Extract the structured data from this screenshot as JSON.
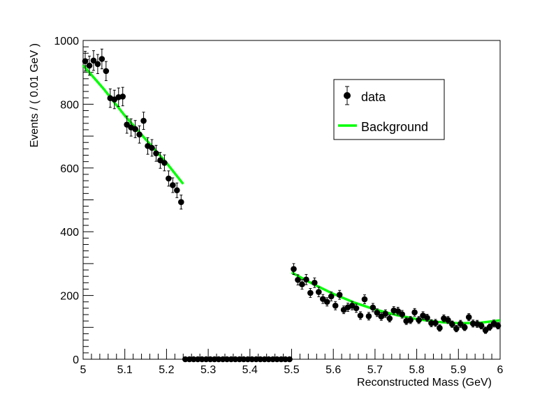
{
  "chart_data": {
    "type": "scatter",
    "xlabel": "Reconstructed Mass (GeV)",
    "ylabel": "Events / ( 0.01 GeV )",
    "xlim": [
      5.0,
      6.0
    ],
    "ylim": [
      0,
      1000
    ],
    "x_ticks": [
      "5",
      "5.1",
      "5.2",
      "5.3",
      "5.4",
      "5.5",
      "5.6",
      "5.7",
      "5.8",
      "5.9",
      "6"
    ],
    "y_ticks": [
      "0",
      "200",
      "400",
      "600",
      "800",
      "1000"
    ],
    "grid": false,
    "legend_position": "top-right",
    "legend": [
      {
        "label": "data",
        "marker": "point",
        "color": "#000000"
      },
      {
        "label": "Background",
        "marker": "line",
        "color": "#00ff00"
      }
    ],
    "series": [
      {
        "name": "data",
        "kind": "points-with-errors",
        "x": [
          5.005,
          5.015,
          5.025,
          5.035,
          5.045,
          5.055,
          5.065,
          5.075,
          5.085,
          5.095,
          5.105,
          5.115,
          5.125,
          5.135,
          5.145,
          5.155,
          5.165,
          5.175,
          5.185,
          5.195,
          5.205,
          5.215,
          5.225,
          5.235,
          5.245,
          5.255,
          5.265,
          5.275,
          5.285,
          5.295,
          5.305,
          5.315,
          5.325,
          5.335,
          5.345,
          5.355,
          5.365,
          5.375,
          5.385,
          5.395,
          5.405,
          5.415,
          5.425,
          5.435,
          5.445,
          5.455,
          5.465,
          5.475,
          5.485,
          5.495,
          5.505,
          5.515,
          5.525,
          5.535,
          5.545,
          5.555,
          5.565,
          5.575,
          5.585,
          5.595,
          5.605,
          5.615,
          5.625,
          5.635,
          5.645,
          5.655,
          5.665,
          5.675,
          5.685,
          5.695,
          5.705,
          5.715,
          5.725,
          5.735,
          5.745,
          5.755,
          5.765,
          5.775,
          5.785,
          5.795,
          5.805,
          5.815,
          5.825,
          5.835,
          5.845,
          5.855,
          5.865,
          5.875,
          5.885,
          5.895,
          5.905,
          5.915,
          5.925,
          5.935,
          5.945,
          5.955,
          5.965,
          5.975,
          5.985,
          5.995
        ],
        "y": [
          935,
          921,
          937,
          926,
          942,
          904,
          819,
          815,
          822,
          824,
          736,
          727,
          722,
          705,
          748,
          669,
          663,
          646,
          624,
          616,
          567,
          546,
          530,
          493,
          0,
          0,
          0,
          0,
          0,
          0,
          0,
          0,
          0,
          0,
          0,
          0,
          0,
          0,
          0,
          0,
          0,
          0,
          0,
          0,
          0,
          0,
          0,
          0,
          0,
          0,
          283,
          249,
          235,
          250,
          208,
          240,
          211,
          189,
          180,
          197,
          168,
          202,
          155,
          163,
          168,
          160,
          137,
          188,
          135,
          162,
          146,
          134,
          143,
          128,
          153,
          151,
          141,
          120,
          123,
          147,
          123,
          137,
          130,
          113,
          114,
          98,
          128,
          123,
          110,
          96,
          111,
          100,
          132,
          112,
          111,
          105,
          91,
          101,
          112,
          105
        ],
        "yerr": [
          31,
          30,
          31,
          30,
          31,
          30,
          29,
          29,
          29,
          29,
          27,
          27,
          27,
          27,
          27,
          26,
          26,
          25,
          25,
          25,
          24,
          23,
          23,
          22,
          0,
          0,
          0,
          0,
          0,
          0,
          0,
          0,
          0,
          0,
          0,
          0,
          0,
          0,
          0,
          0,
          0,
          0,
          0,
          0,
          0,
          0,
          0,
          0,
          0,
          0,
          17,
          16,
          15,
          16,
          14,
          15,
          15,
          14,
          13,
          14,
          13,
          14,
          12,
          13,
          13,
          13,
          12,
          14,
          12,
          13,
          12,
          12,
          12,
          11,
          12,
          12,
          12,
          11,
          11,
          12,
          11,
          12,
          11,
          11,
          11,
          10,
          11,
          11,
          10,
          10,
          11,
          10,
          11,
          11,
          11,
          10,
          10,
          10,
          11,
          10
        ],
        "color": "#000000"
      },
      {
        "name": "Background",
        "kind": "curve",
        "segments": [
          {
            "x": [
              5.0,
              5.05,
              5.1,
              5.15,
              5.2,
              5.24
            ],
            "y": [
              922,
              847,
              764,
              690,
              616,
              550
            ]
          },
          {
            "x": [
              5.5,
              5.55,
              5.6,
              5.65,
              5.7,
              5.75,
              5.8,
              5.85,
              5.9,
              5.95,
              6.0
            ],
            "y": [
              272,
              237,
              205,
              178,
              156,
              139,
              126,
              117,
              113,
              114,
              122
            ]
          }
        ],
        "color": "#00ff00"
      }
    ]
  }
}
